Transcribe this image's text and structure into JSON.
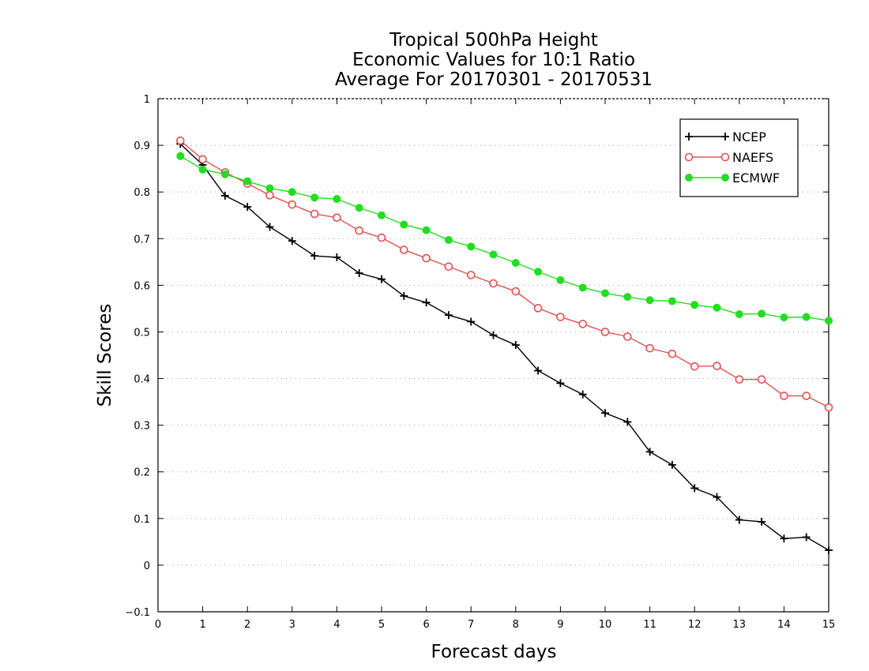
{
  "chart_data": {
    "type": "line",
    "title_lines": [
      "Tropical 500hPa Height",
      "Economic Values for 10:1 Ratio",
      "Average For 20170301 - 20170531"
    ],
    "xlabel": "Forecast days",
    "ylabel": "Skill Scores",
    "xlim": [
      0,
      15
    ],
    "ylim": [
      -0.1,
      1
    ],
    "x_ticks": [
      "0",
      "1",
      "2",
      "3",
      "4",
      "5",
      "6",
      "7",
      "8",
      "9",
      "10",
      "11",
      "12",
      "13",
      "14",
      "15"
    ],
    "y_ticks": [
      "−0.1",
      "0",
      "0.1",
      "0.2",
      "0.3",
      "0.4",
      "0.5",
      "0.6",
      "0.7",
      "0.8",
      "0.9",
      "1"
    ],
    "grid": "horizontal-dotted",
    "legend_position": "top-right",
    "x": [
      0.5,
      1,
      1.5,
      2,
      2.5,
      3,
      3.5,
      4,
      4.5,
      5,
      5.5,
      6,
      6.5,
      7,
      7.5,
      8,
      8.5,
      9,
      9.5,
      10,
      10.5,
      11,
      11.5,
      12,
      12.5,
      13,
      13.5,
      14,
      14.5,
      15
    ],
    "series": [
      {
        "name": "NCEP",
        "color": "#000000",
        "marker": "plus",
        "values": [
          0.903,
          0.858,
          0.792,
          0.768,
          0.725,
          0.695,
          0.663,
          0.66,
          0.626,
          0.613,
          0.577,
          0.563,
          0.536,
          0.522,
          0.493,
          0.472,
          0.417,
          0.39,
          0.366,
          0.326,
          0.307,
          0.243,
          0.215,
          0.165,
          0.146,
          0.097,
          0.093,
          0.057,
          0.06,
          0.032
        ]
      },
      {
        "name": "NAEFS",
        "color": "#e05050",
        "marker": "open-circle",
        "values": [
          0.91,
          0.87,
          0.842,
          0.818,
          0.793,
          0.773,
          0.753,
          0.745,
          0.717,
          0.702,
          0.676,
          0.658,
          0.64,
          0.622,
          0.604,
          0.587,
          0.551,
          0.532,
          0.517,
          0.5,
          0.49,
          0.465,
          0.453,
          0.426,
          0.427,
          0.398,
          0.398,
          0.363,
          0.363,
          0.338
        ]
      },
      {
        "name": "ECMWF",
        "color": "#22dd22",
        "marker": "filled-circle",
        "values": [
          0.877,
          0.848,
          0.838,
          0.823,
          0.808,
          0.8,
          0.788,
          0.785,
          0.766,
          0.75,
          0.73,
          0.718,
          0.697,
          0.683,
          0.666,
          0.648,
          0.629,
          0.611,
          0.595,
          0.583,
          0.575,
          0.568,
          0.566,
          0.558,
          0.552,
          0.538,
          0.539,
          0.531,
          0.532,
          0.524
        ]
      }
    ]
  }
}
